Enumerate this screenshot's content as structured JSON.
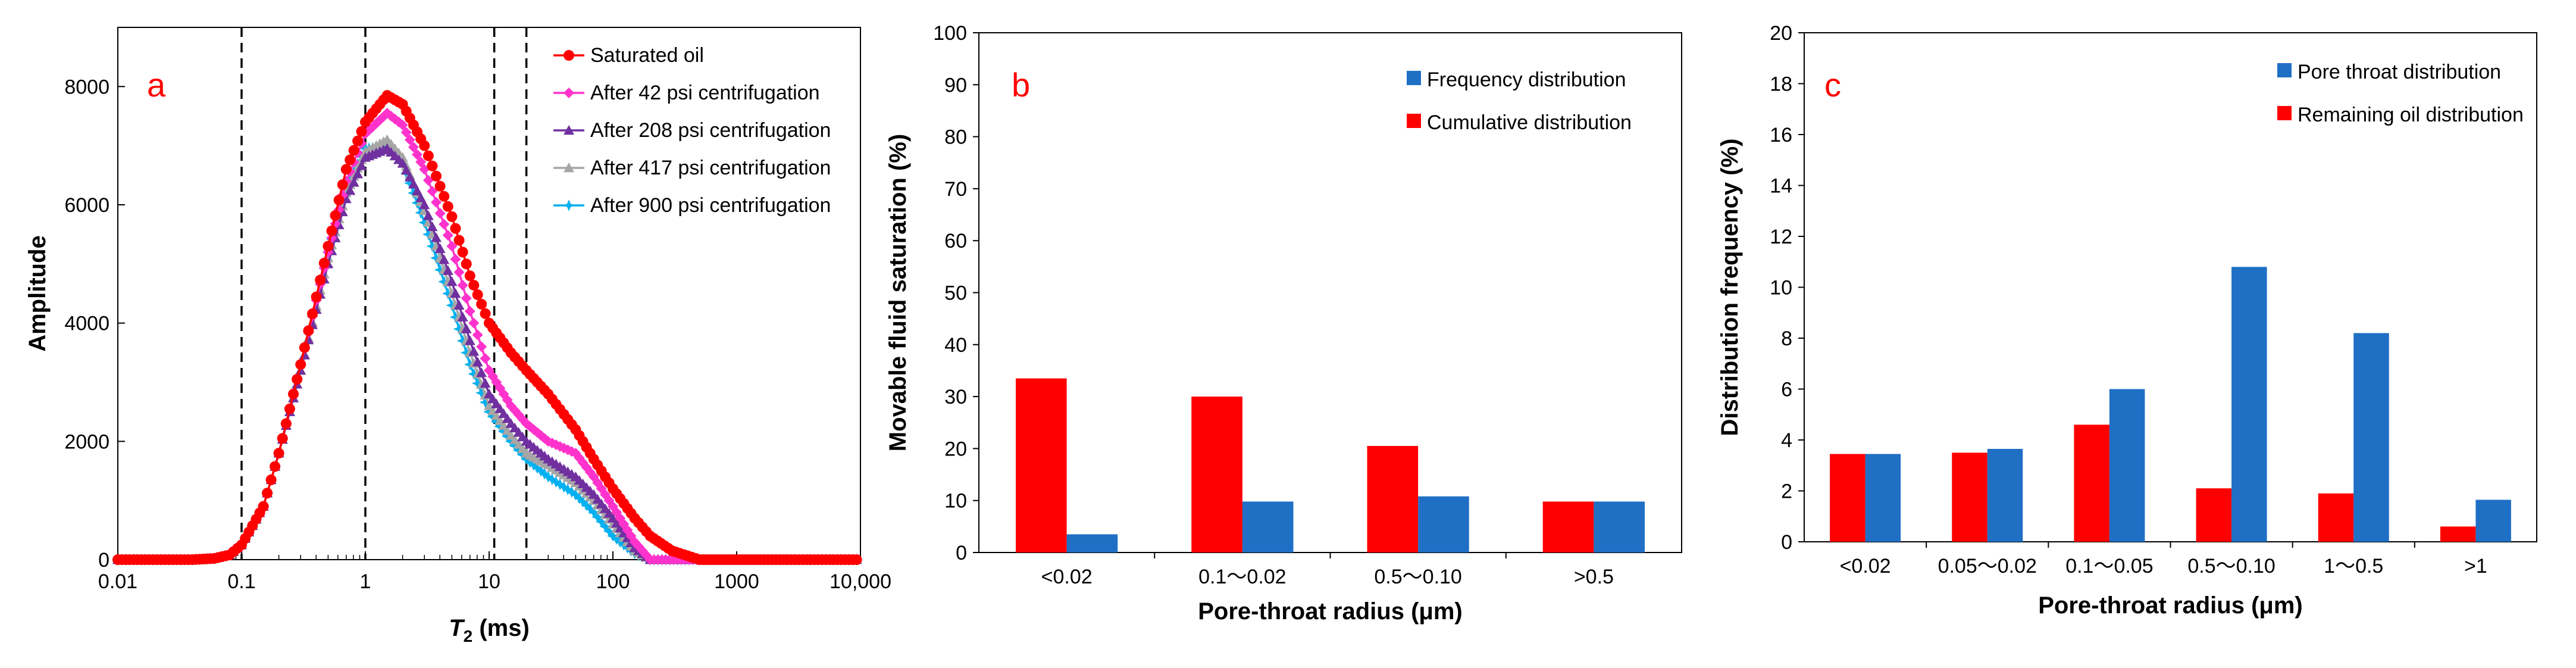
{
  "chart_data": [
    {
      "type": "line",
      "panel_label": "a",
      "xlabel": "T2 (ms)",
      "xlabel_main": "T",
      "xlabel_sub": "2",
      "xlabel_unit": " (ms)",
      "ylabel": "Amplitude",
      "xscale": "log",
      "xlim": [
        0.01,
        10000
      ],
      "ylim": [
        0,
        9000
      ],
      "x_ticks": [
        0.01,
        0.1,
        1,
        10,
        100,
        1000,
        10000
      ],
      "x_tick_labels": [
        "0.01",
        "0.1",
        "1",
        "10",
        "100",
        "1000",
        "10,000"
      ],
      "y_ticks": [
        0,
        2000,
        4000,
        6000,
        8000
      ],
      "y_tick_labels": [
        "0",
        "2000",
        "4000",
        "6000",
        "8000"
      ],
      "vlines": [
        0.1,
        1,
        11,
        20
      ],
      "legend_position": "top-right",
      "series": [
        {
          "name": "Saturated oil",
          "color": "#ff0000",
          "marker": "circle",
          "points": [
            [
              0.01,
              0
            ],
            [
              0.04,
              0
            ],
            [
              0.06,
              20
            ],
            [
              0.08,
              80
            ],
            [
              0.1,
              250
            ],
            [
              0.15,
              900
            ],
            [
              0.2,
              1800
            ],
            [
              0.3,
              3300
            ],
            [
              0.5,
              5300
            ],
            [
              0.7,
              6600
            ],
            [
              1,
              7400
            ],
            [
              1.5,
              7850
            ],
            [
              2,
              7700
            ],
            [
              3,
              7000
            ],
            [
              5,
              5800
            ],
            [
              7,
              4800
            ],
            [
              10,
              4000
            ],
            [
              15,
              3500
            ],
            [
              20,
              3200
            ],
            [
              30,
              2800
            ],
            [
              50,
              2200
            ],
            [
              70,
              1700
            ],
            [
              100,
              1200
            ],
            [
              150,
              700
            ],
            [
              200,
              400
            ],
            [
              300,
              150
            ],
            [
              500,
              0
            ],
            [
              10000,
              0
            ]
          ]
        },
        {
          "name": "After 42 psi centrifugation",
          "color": "#ff33cc",
          "marker": "diamond",
          "points": [
            [
              0.01,
              0
            ],
            [
              0.04,
              0
            ],
            [
              0.06,
              20
            ],
            [
              0.08,
              80
            ],
            [
              0.1,
              250
            ],
            [
              0.15,
              900
            ],
            [
              0.2,
              1800
            ],
            [
              0.3,
              3300
            ],
            [
              0.5,
              5200
            ],
            [
              0.7,
              6400
            ],
            [
              1,
              7200
            ],
            [
              1.5,
              7550
            ],
            [
              2,
              7350
            ],
            [
              3,
              6600
            ],
            [
              5,
              5300
            ],
            [
              7,
              4200
            ],
            [
              10,
              3200
            ],
            [
              15,
              2600
            ],
            [
              20,
              2300
            ],
            [
              30,
              2000
            ],
            [
              50,
              1800
            ],
            [
              70,
              1400
            ],
            [
              100,
              900
            ],
            [
              150,
              300
            ],
            [
              200,
              0
            ],
            [
              10000,
              0
            ]
          ]
        },
        {
          "name": "After 208 psi centrifugation",
          "color": "#7030a0",
          "marker": "triangle",
          "points": [
            [
              0.01,
              0
            ],
            [
              0.04,
              0
            ],
            [
              0.06,
              20
            ],
            [
              0.08,
              80
            ],
            [
              0.1,
              250
            ],
            [
              0.15,
              900
            ],
            [
              0.2,
              1800
            ],
            [
              0.3,
              3200
            ],
            [
              0.5,
              5000
            ],
            [
              0.7,
              6100
            ],
            [
              1,
              6800
            ],
            [
              1.5,
              6950
            ],
            [
              2,
              6700
            ],
            [
              3,
              6000
            ],
            [
              5,
              4700
            ],
            [
              7,
              3700
            ],
            [
              10,
              2800
            ],
            [
              15,
              2300
            ],
            [
              20,
              2000
            ],
            [
              30,
              1700
            ],
            [
              50,
              1400
            ],
            [
              70,
              1100
            ],
            [
              100,
              700
            ],
            [
              150,
              200
            ],
            [
              200,
              0
            ],
            [
              10000,
              0
            ]
          ]
        },
        {
          "name": "After 417 psi centrifugation",
          "color": "#a6a6a6",
          "marker": "triangle",
          "points": [
            [
              0.01,
              0
            ],
            [
              0.04,
              0
            ],
            [
              0.06,
              20
            ],
            [
              0.08,
              80
            ],
            [
              0.1,
              250
            ],
            [
              0.15,
              900
            ],
            [
              0.2,
              1800
            ],
            [
              0.3,
              3200
            ],
            [
              0.5,
              5100
            ],
            [
              0.7,
              6200
            ],
            [
              1,
              6900
            ],
            [
              1.5,
              7100
            ],
            [
              2,
              6800
            ],
            [
              3,
              5900
            ],
            [
              5,
              4500
            ],
            [
              7,
              3500
            ],
            [
              10,
              2600
            ],
            [
              15,
              2100
            ],
            [
              20,
              1800
            ],
            [
              30,
              1600
            ],
            [
              50,
              1300
            ],
            [
              70,
              1000
            ],
            [
              100,
              600
            ],
            [
              150,
              150
            ],
            [
              200,
              0
            ],
            [
              10000,
              0
            ]
          ]
        },
        {
          "name": "After 900 psi centrifugation",
          "color": "#00b0f0",
          "marker": "star",
          "points": [
            [
              0.01,
              0
            ],
            [
              0.04,
              0
            ],
            [
              0.06,
              20
            ],
            [
              0.08,
              80
            ],
            [
              0.1,
              250
            ],
            [
              0.15,
              900
            ],
            [
              0.2,
              1800
            ],
            [
              0.3,
              3300
            ],
            [
              0.5,
              5200
            ],
            [
              0.7,
              6300
            ],
            [
              1,
              6950
            ],
            [
              1.5,
              7000
            ],
            [
              2,
              6700
            ],
            [
              3,
              5700
            ],
            [
              5,
              4300
            ],
            [
              7,
              3300
            ],
            [
              10,
              2500
            ],
            [
              15,
              2000
            ],
            [
              20,
              1700
            ],
            [
              30,
              1400
            ],
            [
              50,
              1100
            ],
            [
              70,
              800
            ],
            [
              100,
              400
            ],
            [
              150,
              100
            ],
            [
              200,
              0
            ],
            [
              10000,
              0
            ]
          ]
        }
      ]
    },
    {
      "type": "bar",
      "panel_label": "b",
      "xlabel": "Pore-throat radius (μm)",
      "ylabel": "Movable fluid saturation (%)",
      "ylim": [
        0,
        100
      ],
      "y_ticks": [
        0,
        10,
        20,
        30,
        40,
        50,
        60,
        70,
        80,
        90,
        100
      ],
      "categories": [
        "<0.02",
        "0.1～0.02",
        "0.5～0.10",
        ">0.5"
      ],
      "legend_position": "top-right",
      "series": [
        {
          "name": "Cumulative distribution",
          "color": "#ff0000",
          "values": [
            33.5,
            30,
            20.5,
            9.8
          ]
        },
        {
          "name": "Frequency distribution",
          "color": "#1f6fc5",
          "values": [
            3.5,
            9.8,
            10.8,
            9.8
          ]
        }
      ],
      "legend_order": [
        "Frequency distribution",
        "Cumulative distribution"
      ]
    },
    {
      "type": "bar",
      "panel_label": "c",
      "xlabel": "Pore-throat radius (μm)",
      "ylabel": "Distribution frequency (%)",
      "ylim": [
        0,
        20
      ],
      "y_ticks": [
        0,
        2,
        4,
        6,
        8,
        10,
        12,
        14,
        16,
        18,
        20
      ],
      "categories": [
        "<0.02",
        "0.05～0.02",
        "0.1～0.05",
        "0.5～0.10",
        "1～0.5",
        ">1"
      ],
      "legend_position": "top-right",
      "series": [
        {
          "name": "Remaining oil distribution",
          "color": "#ff0000",
          "values": [
            3.45,
            3.5,
            4.6,
            2.1,
            1.9,
            0.6
          ]
        },
        {
          "name": "Pore throat distribution",
          "color": "#1f6fc5",
          "values": [
            3.45,
            3.65,
            6.0,
            10.8,
            8.2,
            1.65
          ]
        }
      ],
      "legend_order": [
        "Pore throat distribution",
        "Remaining oil distribution"
      ]
    }
  ]
}
